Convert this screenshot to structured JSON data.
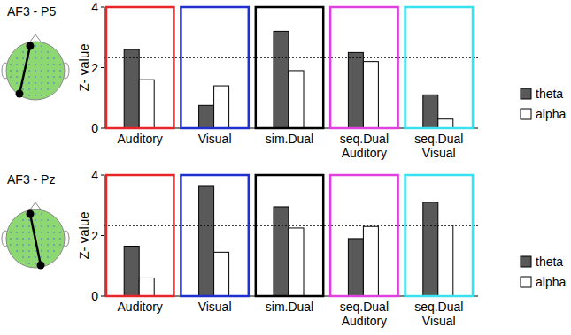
{
  "chart_data": [
    {
      "type": "bar",
      "title": "AF3 - P5",
      "y_label": "Z- value",
      "categories": [
        "Auditory",
        "Visual",
        "sim.Dual",
        "seq.Dual Auditory",
        "seq.Dual Visual"
      ],
      "colors": [
        "#e8262a",
        "#1f2fd0",
        "#000000",
        "#e040e0",
        "#38e0f0"
      ],
      "series": [
        {
          "name": "theta",
          "color": "#595959",
          "values": [
            2.6,
            0.75,
            3.2,
            2.5,
            1.1
          ]
        },
        {
          "name": "alpha",
          "color": "#ffffff",
          "values": [
            1.6,
            1.4,
            1.9,
            2.2,
            0.3
          ]
        }
      ],
      "threshold": 2.33,
      "ylim": [
        0,
        4
      ],
      "yticks": [
        0,
        2,
        4
      ],
      "legend": "right"
    },
    {
      "type": "bar",
      "title": "AF3 - Pz",
      "y_label": "Z- value",
      "categories": [
        "Auditory",
        "Visual",
        "sim.Dual",
        "seq.Dual Auditory",
        "seq.Dual Visual"
      ],
      "colors": [
        "#e8262a",
        "#1f2fd0",
        "#000000",
        "#e040e0",
        "#38e0f0"
      ],
      "series": [
        {
          "name": "theta",
          "color": "#595959",
          "values": [
            1.65,
            3.65,
            2.95,
            1.9,
            3.1
          ]
        },
        {
          "name": "alpha",
          "color": "#ffffff",
          "values": [
            0.6,
            1.45,
            2.25,
            2.3,
            2.35
          ]
        }
      ],
      "threshold": 2.33,
      "ylim": [
        0,
        4
      ],
      "yticks": [
        0,
        2,
        4
      ],
      "legend": "right"
    }
  ]
}
